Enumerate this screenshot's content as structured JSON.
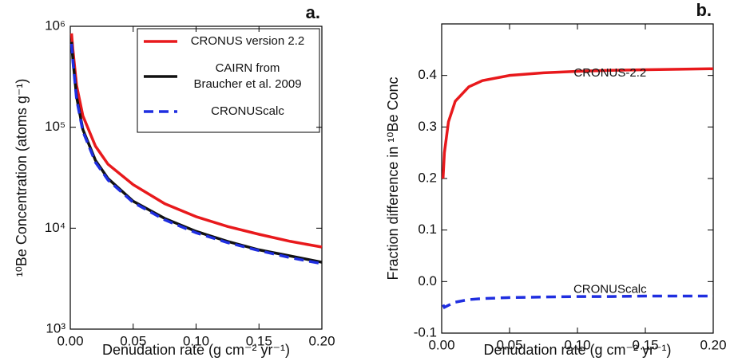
{
  "chart_data": [
    {
      "type": "line",
      "panel": "a.",
      "ylog": true,
      "xlabel": "Denudation rate (g cm⁻² yr⁻¹)",
      "ylabel": "¹⁰Be Concentration (atoms g⁻¹)",
      "xlim": [
        0,
        0.2
      ],
      "ylim": [
        1000,
        1000000
      ],
      "xticks": [
        {
          "value": 0,
          "label": "0.00"
        },
        0.05,
        {
          "value": 0.1,
          "label": "0.10"
        },
        0.15,
        {
          "value": 0.2,
          "label": "0.20"
        }
      ],
      "yticks": [
        {
          "value": 1000,
          "label": "10³"
        },
        {
          "value": 10000,
          "label": "10⁴"
        },
        {
          "value": 100000,
          "label": "10⁵"
        },
        {
          "value": 1000000,
          "label": "10⁶"
        }
      ],
      "legend": "upper right",
      "x": [
        0.001,
        0.002,
        0.005,
        0.01,
        0.02,
        0.03,
        0.05,
        0.075,
        0.1,
        0.125,
        0.15,
        0.175,
        0.2
      ],
      "series": [
        {
          "name": "CRONUS version 2.2",
          "color": "#e8191c",
          "dash": false,
          "values": [
            850000,
            600000,
            260000,
            130000,
            65000,
            43000,
            27000,
            17500,
            13000,
            10400,
            8700,
            7400,
            6500
          ]
        },
        {
          "name": "CAIRN from\nBraucher et al. 2009",
          "color": "#111111",
          "dash": false,
          "values": [
            700000,
            480000,
            200000,
            95000,
            47000,
            31000,
            18500,
            12500,
            9300,
            7400,
            6100,
            5300,
            4600
          ]
        },
        {
          "name": "CRONUScalc",
          "color": "#1f2ee0",
          "dash": true,
          "values": [
            670000,
            460000,
            190000,
            91000,
            45000,
            30000,
            18000,
            12100,
            9000,
            7200,
            6000,
            5100,
            4450
          ]
        }
      ]
    },
    {
      "type": "line",
      "panel": "b.",
      "ylog": false,
      "xlabel": "Denudation rate (g cm⁻² yr⁻¹)",
      "ylabel": "Fraction difference in ¹⁰Be Conc",
      "xlim": [
        0,
        0.2
      ],
      "ylim": [
        -0.1,
        0.5
      ],
      "xticks": [
        {
          "value": 0,
          "label": "0.00"
        },
        0.05,
        {
          "value": 0.1,
          "label": "0.10"
        },
        0.15,
        {
          "value": 0.2,
          "label": "0.20"
        }
      ],
      "yticks": [
        -0.1,
        {
          "value": 0,
          "label": "0.0"
        },
        0.1,
        0.2,
        0.3,
        0.4
      ],
      "x": [
        0.001,
        0.002,
        0.005,
        0.01,
        0.02,
        0.03,
        0.05,
        0.075,
        0.1,
        0.125,
        0.15,
        0.175,
        0.2
      ],
      "series": [
        {
          "name": "CRONUS-2.2",
          "color": "#e8191c",
          "dash": false,
          "values": [
            0.2,
            0.25,
            0.31,
            0.35,
            0.378,
            0.39,
            0.4,
            0.405,
            0.408,
            0.41,
            0.411,
            0.412,
            0.413
          ]
        },
        {
          "name": "CRONUScalc",
          "color": "#1f2ee0",
          "dash": true,
          "values": [
            -0.045,
            -0.05,
            -0.046,
            -0.04,
            -0.035,
            -0.033,
            -0.031,
            -0.03,
            -0.029,
            -0.029,
            -0.028,
            -0.028,
            -0.028
          ]
        }
      ]
    }
  ]
}
